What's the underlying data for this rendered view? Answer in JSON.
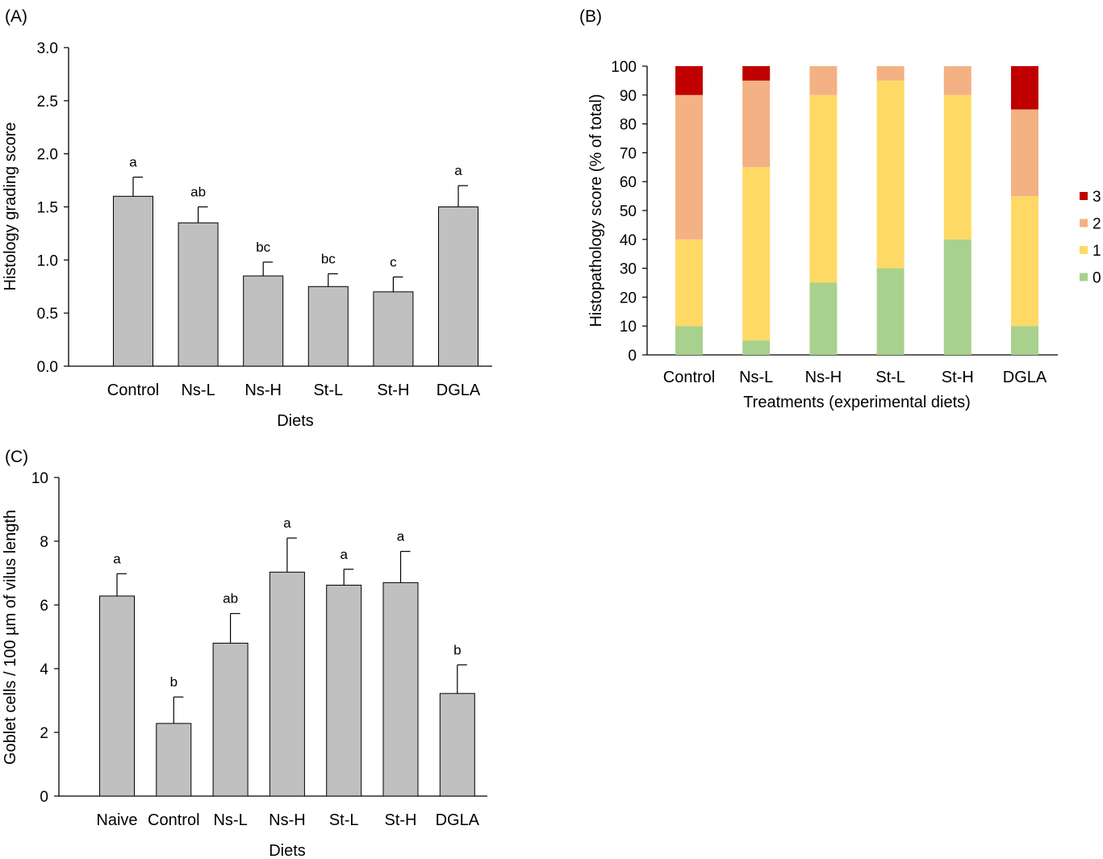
{
  "chart_data": [
    {
      "panel": "(A)",
      "type": "bar",
      "title": "",
      "xlabel": "Diets",
      "ylabel": "Histology grading score",
      "ylim": [
        0,
        3.0
      ],
      "yticks": [
        "0.0",
        "0.5",
        "1.0",
        "1.5",
        "2.0",
        "2.5",
        "3.0"
      ],
      "categories": [
        "Control",
        "Ns-L",
        "Ns-H",
        "St-L",
        "St-H",
        "DGLA"
      ],
      "values": [
        1.6,
        1.35,
        0.85,
        0.75,
        0.7,
        1.5
      ],
      "errors": [
        0.18,
        0.15,
        0.13,
        0.12,
        0.14,
        0.2
      ],
      "letters": [
        "a",
        "ab",
        "bc",
        "bc",
        "c",
        "a"
      ],
      "bar_color": "#c0c0c0",
      "grid": false
    },
    {
      "panel": "(B)",
      "type": "bar",
      "stacked": true,
      "title": "",
      "xlabel": "Treatments (experimental diets)",
      "ylabel": "Histopathology score (% of total)",
      "ylim": [
        0,
        100
      ],
      "yticks": [
        "0",
        "10",
        "20",
        "30",
        "40",
        "50",
        "60",
        "70",
        "80",
        "90",
        "100"
      ],
      "categories": [
        "Control",
        "Ns-L",
        "Ns-H",
        "St-L",
        "St-H",
        "DGLA"
      ],
      "series": [
        {
          "name": "0",
          "color": "#a8d18d",
          "values": [
            10,
            5,
            25,
            30,
            40,
            10
          ]
        },
        {
          "name": "1",
          "color": "#ffd966",
          "values": [
            30,
            60,
            65,
            65,
            50,
            45
          ]
        },
        {
          "name": "2",
          "color": "#f4b183",
          "values": [
            50,
            30,
            10,
            5,
            10,
            30
          ]
        },
        {
          "name": "3",
          "color": "#c00000",
          "values": [
            10,
            5,
            0,
            0,
            0,
            15
          ]
        }
      ],
      "legend": "right",
      "legend_order": [
        "3",
        "2",
        "1",
        "0"
      ],
      "grid": false
    },
    {
      "panel": "(C)",
      "type": "bar",
      "title": "",
      "xlabel": "Diets",
      "ylabel": "Goblet cells / 100 µm of vilus length",
      "ylim": [
        0,
        10
      ],
      "yticks": [
        "0",
        "2",
        "4",
        "6",
        "8",
        "10"
      ],
      "categories": [
        "Naive",
        "Control",
        "Ns-L",
        "Ns-H",
        "St-L",
        "St-H",
        "DGLA"
      ],
      "values": [
        6.28,
        2.28,
        4.8,
        7.03,
        6.62,
        6.7,
        3.22
      ],
      "errors": [
        0.7,
        0.83,
        0.93,
        1.07,
        0.5,
        0.98,
        0.9
      ],
      "letters": [
        "a",
        "b",
        "ab",
        "a",
        "a",
        "a",
        "b"
      ],
      "bar_color": "#c0c0c0",
      "grid": false
    }
  ]
}
